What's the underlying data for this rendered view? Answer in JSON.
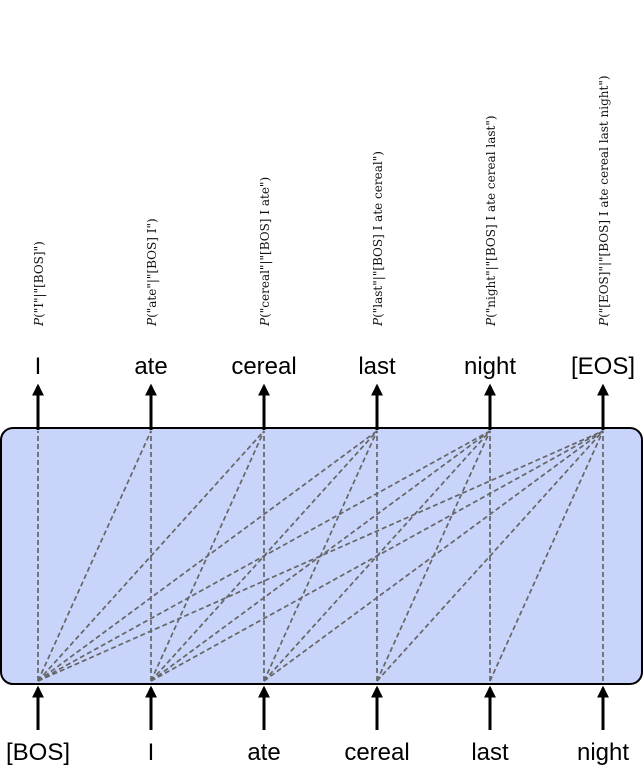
{
  "diagram": {
    "input_tokens": [
      "[BOS]",
      "I",
      "ate",
      "cereal",
      "last",
      "night"
    ],
    "output_tokens": [
      "I",
      "ate",
      "cereal",
      "last",
      "night",
      "[EOS]"
    ],
    "probabilities": [
      "(\"I\"|\"[BOS]\")",
      "(\"ate\"|\"[BOS] I\")",
      "(\"cereal\"|\"[BOS] I ate\")",
      "(\"last\"|\"[BOS] I ate cereal\")",
      "(\"night\"|\"[BOS] I ate cereal last\")",
      "(\"[EOS]\"|\"[BOS] I ate cereal last night\")"
    ],
    "prob_symbol": "P",
    "colors": {
      "box_fill": "#c8d4fa",
      "box_stroke": "#000000",
      "connection": "#666666",
      "arrow": "#000000"
    },
    "connections": "causal"
  }
}
